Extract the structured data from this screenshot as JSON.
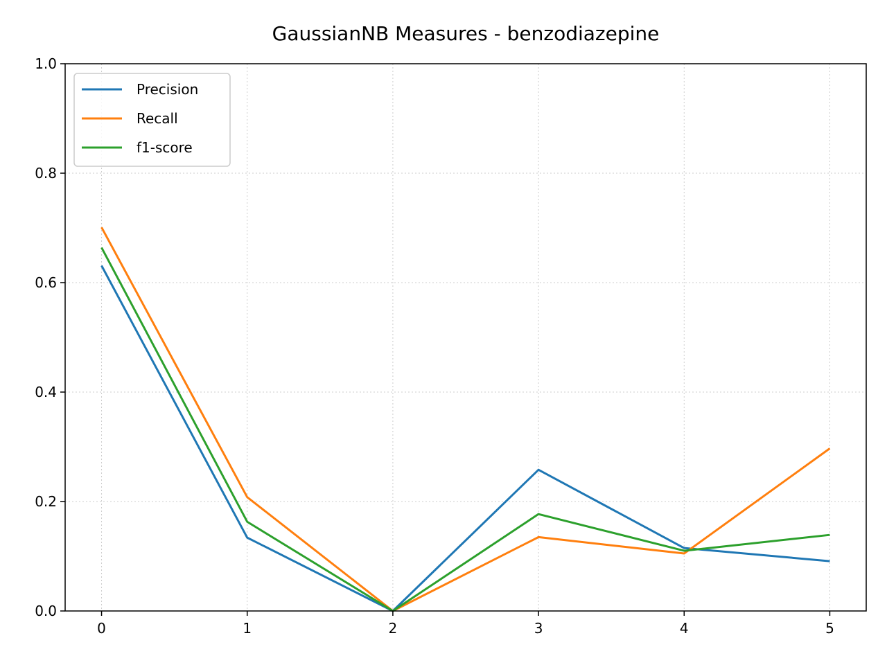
{
  "chart_data": {
    "type": "line",
    "title": "GaussianNB Measures - benzodiazepine",
    "xlabel": "",
    "ylabel": "",
    "x": [
      0,
      1,
      2,
      3,
      4,
      5
    ],
    "x_tick_labels": [
      "0",
      "1",
      "2",
      "3",
      "4",
      "5"
    ],
    "y_tick_labels": [
      "0.0",
      "0.2",
      "0.4",
      "0.6",
      "0.8",
      "1.0"
    ],
    "y_ticks": [
      0.0,
      0.2,
      0.4,
      0.6,
      0.8,
      1.0
    ],
    "xlim": [
      -0.25,
      5.25
    ],
    "ylim": [
      0.0,
      1.0
    ],
    "grid": true,
    "legend_position": "top-left",
    "series": [
      {
        "name": "Precision",
        "color": "#1f77b4",
        "values": [
          0.631,
          0.134,
          0.0,
          0.258,
          0.115,
          0.091
        ]
      },
      {
        "name": "Recall",
        "color": "#ff7f0e",
        "values": [
          0.701,
          0.208,
          0.0,
          0.135,
          0.105,
          0.297
        ]
      },
      {
        "name": "f1-score",
        "color": "#2ca02c",
        "values": [
          0.664,
          0.163,
          0.0,
          0.177,
          0.11,
          0.139
        ]
      }
    ]
  }
}
